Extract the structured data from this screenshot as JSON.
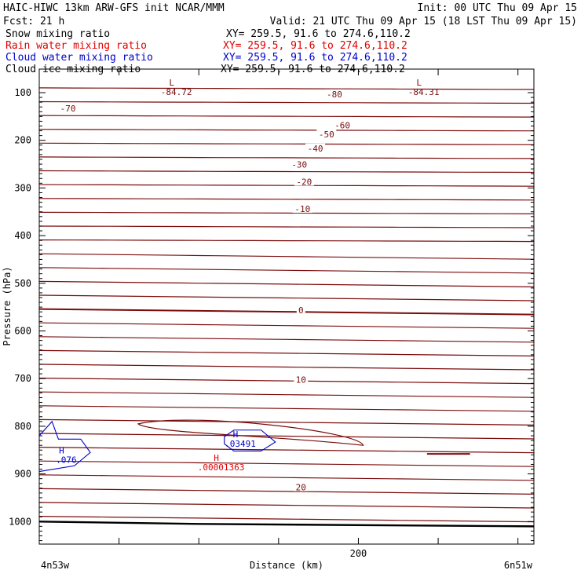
{
  "header": {
    "title_left": "HAIC-HIWC 13km ARW-GFS init   NCAR/MMM",
    "init": "Init: 00 UTC Thu 09 Apr 15",
    "fcst": "Fcst:   21 h",
    "valid": "Valid: 21 UTC Thu 09 Apr 15 (18 LST Thu 09 Apr 15)"
  },
  "legend": [
    {
      "label": "Snow mixing ratio",
      "xy": "XY= 259.5, 91.6 to 274.6,110.2",
      "color": "#000000"
    },
    {
      "label": "Rain water mixing ratio",
      "xy": "XY= 259.5, 91.6 to 274.6,110.2",
      "color": "#e00000"
    },
    {
      "label": "Cloud water mixing ratio",
      "xy": "XY= 259.5, 91.6 to 274.6,110.2",
      "color": "#0000cc"
    },
    {
      "label": "Cloud ice mixing ratio",
      "xy": "XY= 259.5, 91.6 to 274.6,110.2",
      "color": "#000000"
    }
  ],
  "chart_data": {
    "type": "line",
    "title": "",
    "xlabel": "Distance (km)",
    "ylabel": "Pressure (hPa)",
    "xlim": [
      0,
      310
    ],
    "ylim": [
      1050,
      50
    ],
    "xticks": [
      {
        "value": 200,
        "label": "200"
      }
    ],
    "x_end_labels": {
      "left": "4n53w",
      "right": "6n51w"
    },
    "yticks": [
      100,
      200,
      300,
      400,
      500,
      600,
      700,
      800,
      900,
      1000
    ],
    "colors": {
      "isotherm": "#7a0c0c",
      "surface": "#000000",
      "cloud_water": "#0000cc",
      "rain_water": "#e00000"
    },
    "isotherm_labels": [
      {
        "x": 185,
        "p": 103,
        "label": "-80"
      },
      {
        "x": 18,
        "p": 133,
        "label": "-70"
      },
      {
        "x": 190,
        "p": 168,
        "label": "-60"
      },
      {
        "x": 180,
        "p": 187,
        "label": "-50"
      },
      {
        "x": 173,
        "p": 217,
        "label": "-40"
      },
      {
        "x": 163,
        "p": 251,
        "label": "-30"
      },
      {
        "x": 166,
        "p": 287,
        "label": "-20"
      },
      {
        "x": 165,
        "p": 344,
        "label": "-10"
      },
      {
        "x": 164,
        "p": 556,
        "label": "0"
      },
      {
        "x": 164,
        "p": 702,
        "label": "10"
      },
      {
        "x": 164,
        "p": 928,
        "label": "20"
      }
    ],
    "extrema": [
      {
        "kind": "L",
        "x": 83,
        "p": 85,
        "value": "-84.72",
        "series": "temperature"
      },
      {
        "kind": "L",
        "x": 238,
        "p": 85,
        "value": "-84.31",
        "series": "temperature"
      },
      {
        "kind": "H",
        "x": 14,
        "p": 857,
        "value": ".076",
        "series": "cloud_water"
      },
      {
        "kind": "H",
        "x": 123,
        "p": 823,
        "value": ".03491",
        "series": "cloud_water"
      },
      {
        "kind": "H",
        "x": 111,
        "p": 873,
        "value": ".00001363",
        "series": "rain_water"
      }
    ]
  }
}
